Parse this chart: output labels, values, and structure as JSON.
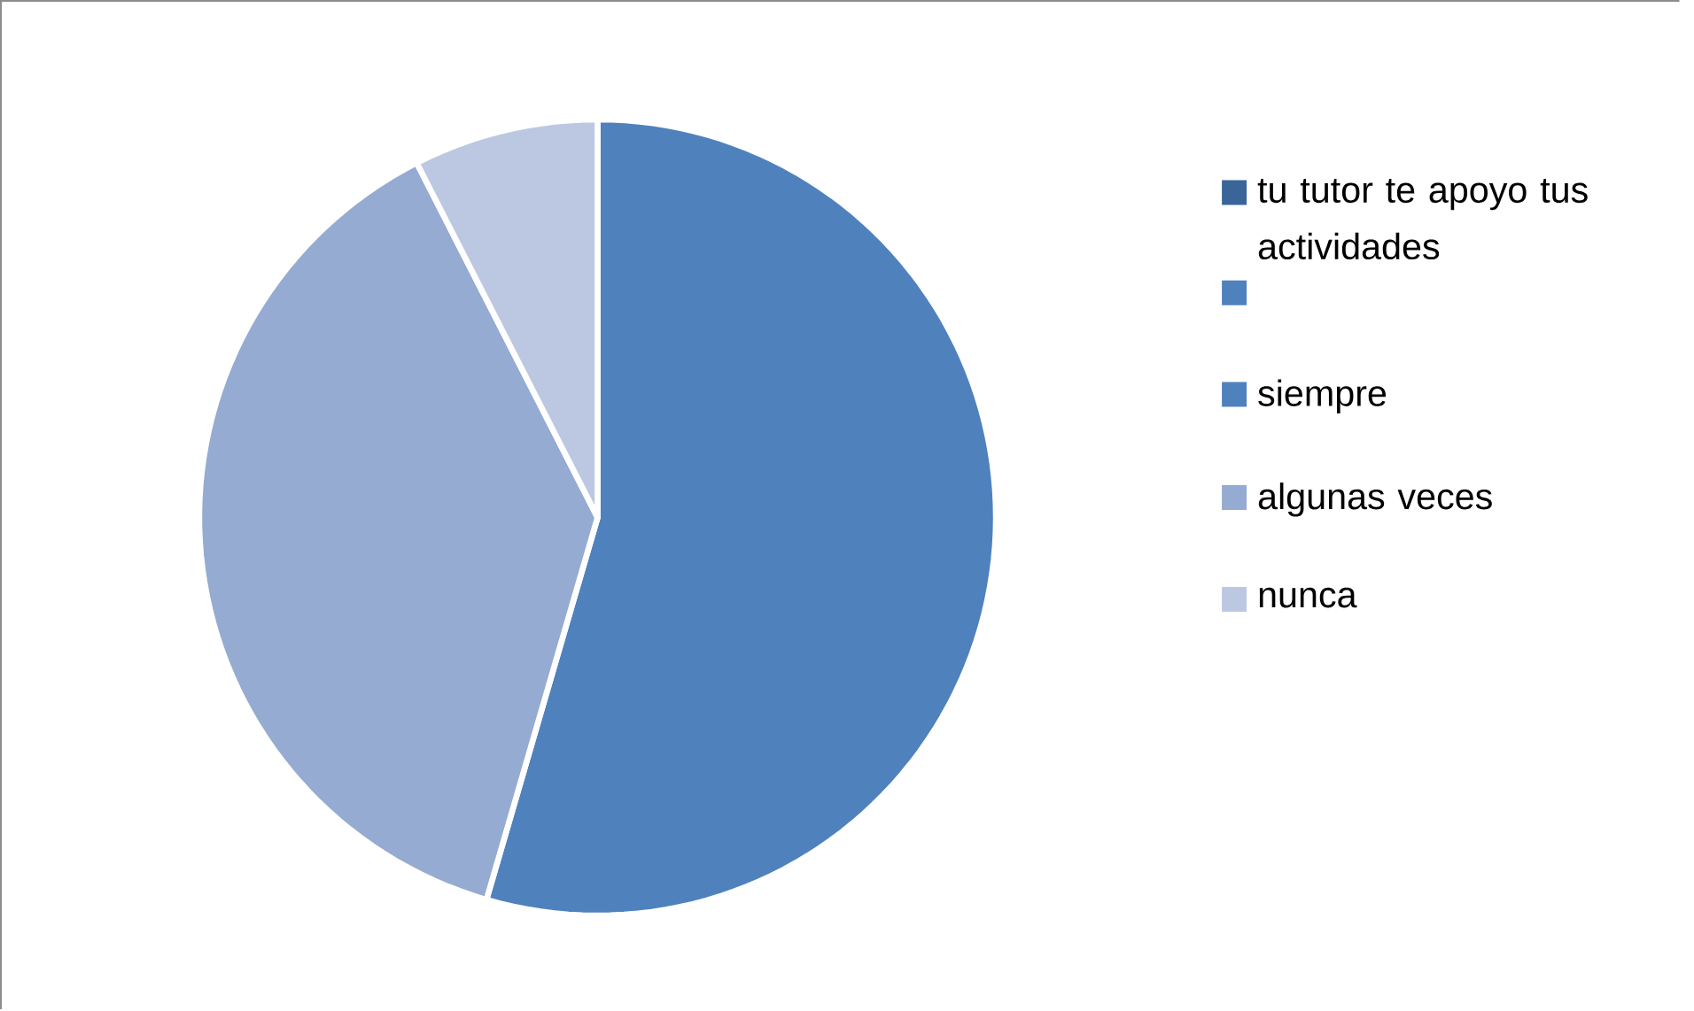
{
  "chart_data": {
    "type": "pie",
    "categories": [
      "tu tutor te apoyo tus actividades",
      null,
      "siempre",
      "algunas veces",
      "nunca"
    ],
    "values": [
      0,
      0,
      54.5,
      38,
      7.5
    ],
    "colors": [
      "#3a6599",
      "#4f81bd",
      "#4f81bd",
      "#95abd1",
      "#bcc8e1"
    ],
    "legend": "right"
  }
}
